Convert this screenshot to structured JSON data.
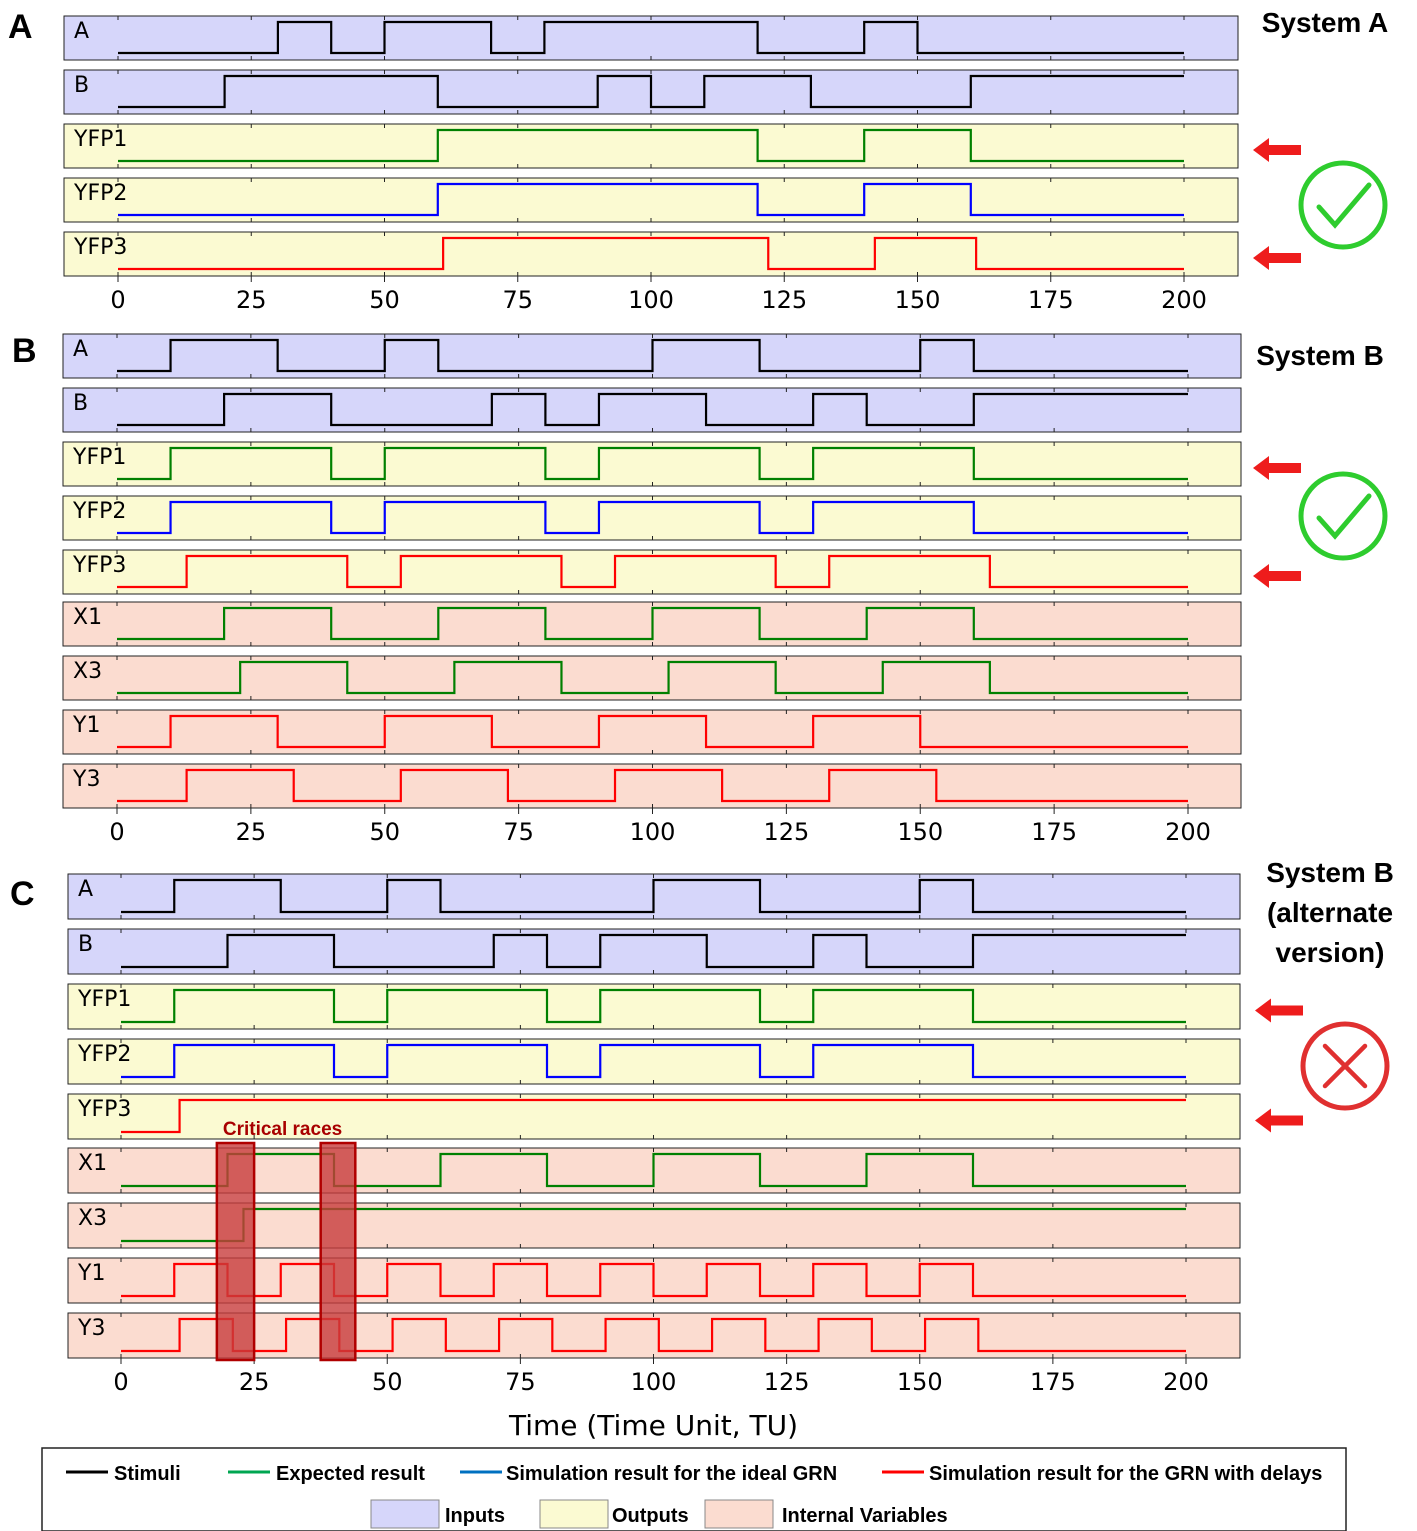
{
  "colors": {
    "stimuli": "#000000",
    "expected": "#008000",
    "ideal": "#0000ff",
    "delays": "#ff0000",
    "inputs_bg": "#d6d6fa",
    "outputs_bg": "#fbfad2",
    "internal_bg": "#fbdcd0",
    "check": "#2ecc2e",
    "cross": "#e03030",
    "race_fill": "#c83c3c",
    "race_text": "#a80000"
  },
  "chart_data": [
    {
      "type": "line",
      "panel": "A",
      "title": "System A",
      "status": "check",
      "xlim": [
        0,
        200
      ],
      "xticks": [
        0,
        25,
        50,
        75,
        100,
        125,
        150,
        175,
        200
      ],
      "arrows_on": [
        "YFP1",
        "YFP3"
      ],
      "series": [
        {
          "name": "A",
          "group": "inputs",
          "kind": "stimuli",
          "init": 0,
          "transitions": [
            30,
            40,
            50,
            70,
            80,
            120,
            140,
            150
          ]
        },
        {
          "name": "B",
          "group": "inputs",
          "kind": "stimuli",
          "init": 0,
          "transitions": [
            20,
            60,
            90,
            100,
            110,
            130,
            160
          ]
        },
        {
          "name": "YFP1",
          "group": "outputs",
          "kind": "expected",
          "init": 0,
          "transitions": [
            60,
            120,
            140,
            160
          ]
        },
        {
          "name": "YFP2",
          "group": "outputs",
          "kind": "ideal",
          "init": 0,
          "transitions": [
            60,
            120,
            140,
            160
          ]
        },
        {
          "name": "YFP3",
          "group": "outputs",
          "kind": "delays",
          "init": 0,
          "transitions": [
            61,
            122,
            142,
            161
          ]
        }
      ]
    },
    {
      "type": "line",
      "panel": "B",
      "title": "System B",
      "status": "check",
      "xlim": [
        0,
        200
      ],
      "xticks": [
        0,
        25,
        50,
        75,
        100,
        125,
        150,
        175,
        200
      ],
      "arrows_on": [
        "YFP1",
        "YFP3"
      ],
      "series": [
        {
          "name": "A",
          "group": "inputs",
          "kind": "stimuli",
          "init": 0,
          "transitions": [
            10,
            30,
            50,
            60,
            100,
            120,
            150,
            160
          ]
        },
        {
          "name": "B",
          "group": "inputs",
          "kind": "stimuli",
          "init": 0,
          "transitions": [
            20,
            40,
            70,
            80,
            90,
            110,
            130,
            140,
            160
          ]
        },
        {
          "name": "YFP1",
          "group": "outputs",
          "kind": "expected",
          "init": 0,
          "transitions": [
            10,
            40,
            50,
            80,
            90,
            120,
            130,
            160
          ]
        },
        {
          "name": "YFP2",
          "group": "outputs",
          "kind": "ideal",
          "init": 0,
          "transitions": [
            10,
            40,
            50,
            80,
            90,
            120,
            130,
            160
          ]
        },
        {
          "name": "YFP3",
          "group": "outputs",
          "kind": "delays",
          "init": 0,
          "transitions": [
            13,
            43,
            53,
            83,
            93,
            123,
            133,
            163
          ]
        },
        {
          "name": "X1",
          "group": "internal",
          "kind": "expected",
          "init": 0,
          "transitions": [
            20,
            40,
            60,
            80,
            100,
            120,
            140,
            160
          ]
        },
        {
          "name": "X3",
          "group": "internal",
          "kind": "expected",
          "init": 0,
          "transitions": [
            23,
            43,
            63,
            83,
            103,
            123,
            143,
            163
          ]
        },
        {
          "name": "Y1",
          "group": "internal",
          "kind": "delays",
          "init": 0,
          "transitions": [
            10,
            30,
            50,
            70,
            90,
            110,
            130,
            150
          ]
        },
        {
          "name": "Y3",
          "group": "internal",
          "kind": "delays",
          "init": 0,
          "transitions": [
            13,
            33,
            53,
            73,
            93,
            113,
            133,
            153
          ]
        }
      ]
    },
    {
      "type": "line",
      "panel": "C",
      "title": "System B\n(alternate\nversion)",
      "status": "cross",
      "xlim": [
        0,
        200
      ],
      "xticks": [
        0,
        25,
        50,
        75,
        100,
        125,
        150,
        175,
        200
      ],
      "xlabel": "Time (Time Unit, TU)",
      "arrows_on": [
        "YFP1",
        "YFP3"
      ],
      "critical_races": {
        "label": "Critical races",
        "windows": [
          [
            18,
            25
          ],
          [
            37.5,
            44
          ]
        ]
      },
      "series": [
        {
          "name": "A",
          "group": "inputs",
          "kind": "stimuli",
          "init": 0,
          "transitions": [
            10,
            30,
            50,
            60,
            100,
            120,
            150,
            160
          ]
        },
        {
          "name": "B",
          "group": "inputs",
          "kind": "stimuli",
          "init": 0,
          "transitions": [
            20,
            40,
            70,
            80,
            90,
            110,
            130,
            140,
            160
          ]
        },
        {
          "name": "YFP1",
          "group": "outputs",
          "kind": "expected",
          "init": 0,
          "transitions": [
            10,
            40,
            50,
            80,
            90,
            120,
            130,
            160
          ]
        },
        {
          "name": "YFP2",
          "group": "outputs",
          "kind": "ideal",
          "init": 0,
          "transitions": [
            10,
            40,
            50,
            80,
            90,
            120,
            130,
            160
          ]
        },
        {
          "name": "YFP3",
          "group": "outputs",
          "kind": "delays",
          "init": 0,
          "transitions": [
            11
          ]
        },
        {
          "name": "X1",
          "group": "internal",
          "kind": "expected",
          "init": 0,
          "transitions": [
            20,
            40,
            60,
            80,
            100,
            120,
            140,
            160
          ]
        },
        {
          "name": "X3",
          "group": "internal",
          "kind": "expected",
          "init": 0,
          "transitions": [
            23
          ]
        },
        {
          "name": "Y1",
          "group": "internal",
          "kind": "delays",
          "init": 0,
          "transitions": [
            10,
            20,
            30,
            40,
            50,
            60,
            70,
            80,
            90,
            100,
            110,
            120,
            130,
            140,
            150,
            160
          ]
        },
        {
          "name": "Y3",
          "group": "internal",
          "kind": "delays",
          "init": 0,
          "transitions": [
            11,
            21,
            31,
            41,
            51,
            61,
            71,
            81,
            91,
            101,
            111,
            121,
            131,
            141,
            151,
            161
          ]
        }
      ]
    }
  ],
  "legend": {
    "lines": [
      {
        "label": "Stimuli",
        "kind": "stimuli"
      },
      {
        "label": "Expected result",
        "kind": "expected"
      },
      {
        "label": "Simulation result for the ideal GRN",
        "kind": "ideal"
      },
      {
        "label": "Simulation result for the GRN with delays",
        "kind": "delays"
      }
    ],
    "boxes": [
      {
        "label": "Inputs",
        "group": "inputs"
      },
      {
        "label": "Outputs",
        "group": "outputs"
      },
      {
        "label": "Internal Variables",
        "group": "internal"
      }
    ]
  }
}
